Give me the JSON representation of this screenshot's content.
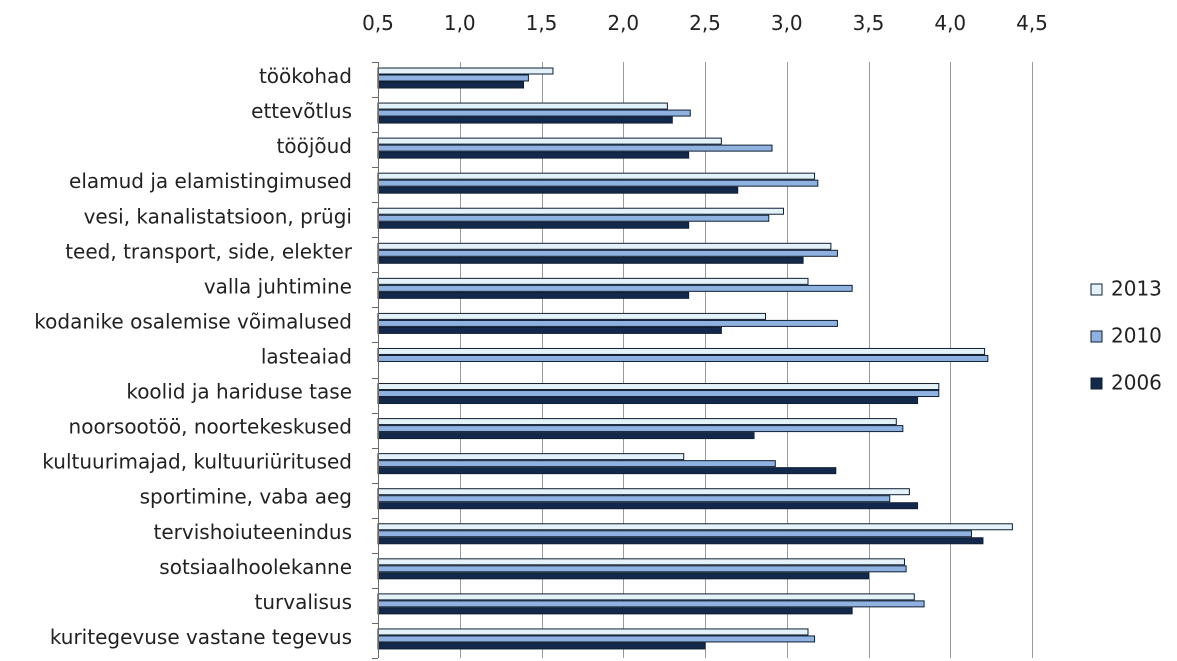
{
  "chart_data": {
    "type": "bar",
    "orientation": "horizontal",
    "x_ticks": [
      "0,5",
      "1,0",
      "1,5",
      "2,0",
      "2,5",
      "3,0",
      "3,5",
      "4,0",
      "4,5"
    ],
    "xlim": [
      0.5,
      4.5
    ],
    "x_axis_position": "top",
    "grid": true,
    "legend_position": "right",
    "categories": [
      "töökohad",
      "ettevõtlus",
      "tööjõud",
      "elamud ja elamistingimused",
      "vesi, kanalistatsioon, prügi",
      "teed, transport, side, elekter",
      "valla juhtimine",
      "kodanike osalemise võimalused",
      "lasteaiad",
      "koolid ja hariduse tase",
      "noorsootöö, noortekeskused",
      "kultuurimajad, kultuuriüritused",
      "sportimine, vaba aeg",
      "tervishoiuteenindus",
      "sotsiaalhoolekanne",
      "turvalisus",
      "kuritegevuse vastane tegevus"
    ],
    "series": [
      {
        "name": "2013",
        "color": "#e3f2f8",
        "values": [
          1.57,
          2.27,
          2.6,
          3.17,
          2.98,
          3.27,
          3.13,
          2.87,
          4.21,
          3.93,
          3.67,
          2.37,
          3.75,
          4.38,
          3.72,
          3.78,
          3.13
        ]
      },
      {
        "name": "2010",
        "color": "#8fb2e0",
        "values": [
          1.42,
          2.41,
          2.91,
          3.19,
          2.89,
          3.31,
          3.4,
          3.31,
          4.23,
          3.93,
          3.71,
          2.93,
          3.63,
          4.13,
          3.73,
          3.84,
          3.17
        ]
      },
      {
        "name": "2006",
        "color": "#13294b",
        "values": [
          1.39,
          2.3,
          2.4,
          2.7,
          2.4,
          3.1,
          2.4,
          2.6,
          null,
          3.8,
          2.8,
          3.3,
          3.8,
          4.2,
          3.5,
          3.4,
          2.5
        ]
      }
    ]
  }
}
